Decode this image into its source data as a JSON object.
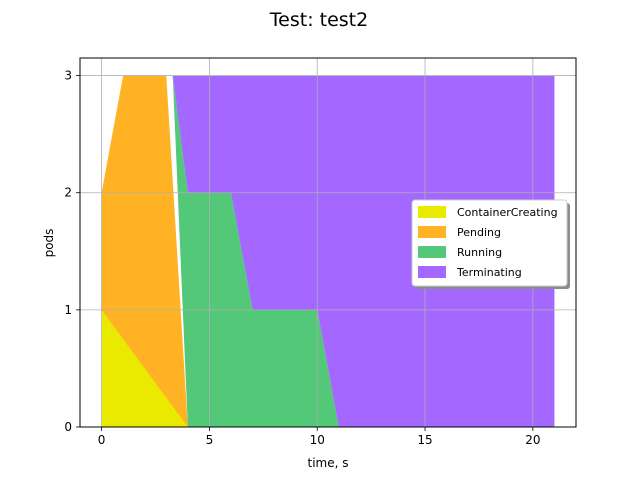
{
  "chart_data": {
    "type": "area",
    "stacked": true,
    "title": "Test: test2",
    "xlabel": "time, s",
    "ylabel": "pods",
    "xlim": [
      -1,
      22
    ],
    "ylim": [
      0,
      3.15
    ],
    "xticks": [
      0,
      5,
      10,
      15,
      20
    ],
    "yticks": [
      0,
      1,
      2,
      3
    ],
    "grid": true,
    "legend": {
      "position": "right"
    },
    "series": [
      {
        "name": "ContainerCreating",
        "color": "#eaea00",
        "points": [
          [
            0,
            0
          ],
          [
            0,
            1
          ],
          [
            3,
            1
          ],
          [
            4,
            0
          ]
        ]
      },
      {
        "name": "Pending",
        "color": "#ffb224",
        "points": [
          [
            0,
            1
          ],
          [
            0,
            2
          ],
          [
            1,
            3
          ],
          [
            3,
            3
          ],
          [
            4,
            0
          ]
        ]
      },
      {
        "name": "Running",
        "color": "#52c878",
        "points": [
          [
            3.3,
            3
          ],
          [
            4,
            2
          ],
          [
            6,
            2
          ],
          [
            7,
            1
          ],
          [
            10,
            1
          ],
          [
            11,
            0
          ],
          [
            4,
            0
          ]
        ]
      },
      {
        "name": "Terminating",
        "color": "#a467ff",
        "points": [
          [
            3.3,
            3
          ],
          [
            21,
            3
          ],
          [
            21,
            0
          ],
          [
            11,
            0
          ],
          [
            10,
            1
          ],
          [
            7,
            1
          ],
          [
            6,
            2
          ],
          [
            4,
            2
          ]
        ]
      }
    ]
  }
}
